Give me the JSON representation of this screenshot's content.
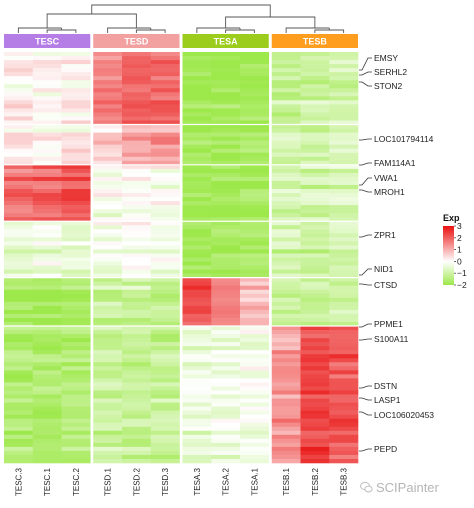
{
  "chart_data": {
    "type": "heatmap",
    "groups": [
      {
        "label": "TESC",
        "color": "#b57ee6",
        "columns": [
          "TESC.3",
          "TESC.1",
          "TESC.2"
        ]
      },
      {
        "label": "TESD",
        "color": "#f2a0a0",
        "columns": [
          "TESD.1",
          "TESD.2",
          "TESD.3"
        ]
      },
      {
        "label": "TESA",
        "color": "#9ccc1c",
        "columns": [
          "TESA.3",
          "TESA.2",
          "TESA.1"
        ]
      },
      {
        "label": "TESB",
        "color": "#ff9d1f",
        "columns": [
          "TESB.1",
          "TESB.2",
          "TESB.3"
        ]
      }
    ],
    "row_labels": [
      "EMSY",
      "SERHL2",
      "STON2",
      "LOC101794114",
      "FAM114A1",
      "VWA1",
      "MROH1",
      "ZPR1",
      "NID1",
      "CTSD",
      "PPME1",
      "S100A11",
      "DSTN",
      "LASP1",
      "LOC106020453",
      "PEPD"
    ],
    "blocks": [
      {
        "rows": 18,
        "values": [
          0.2,
          0.1,
          0.2,
          1.6,
          2.0,
          1.9,
          -1.9,
          -1.9,
          -1.9,
          -1.1,
          -1.0,
          -0.9
        ]
      },
      {
        "rows": 10,
        "values": [
          0.1,
          0.0,
          0.2,
          0.6,
          1.0,
          1.2,
          -1.9,
          -1.9,
          -1.9,
          -1.0,
          -1.1,
          -1.0
        ]
      },
      {
        "rows": 14,
        "values": [
          1.8,
          1.9,
          2.1,
          -0.2,
          -0.1,
          0.0,
          -1.9,
          -1.9,
          -1.9,
          -0.8,
          -0.9,
          -0.8
        ]
      },
      {
        "rows": 14,
        "values": [
          -0.5,
          -0.4,
          -0.6,
          -0.3,
          -0.2,
          -0.4,
          -1.9,
          -1.9,
          -1.9,
          -1.0,
          -1.1,
          -1.0
        ]
      },
      {
        "rows": 12,
        "values": [
          -1.8,
          -1.8,
          -1.7,
          -1.1,
          -1.0,
          -1.2,
          2.2,
          1.5,
          0.9,
          -1.0,
          -1.0,
          -0.9
        ]
      },
      {
        "rows": 34,
        "values": [
          -1.6,
          -1.6,
          -1.5,
          -1.1,
          -1.2,
          -1.1,
          -0.4,
          -0.3,
          -0.2,
          1.3,
          2.3,
          2.1
        ]
      }
    ],
    "group_separators_after_row": [
      18,
      28,
      42,
      56,
      68
    ],
    "legend": {
      "title": "Exp",
      "ticks": [
        3,
        2,
        1,
        0,
        -1,
        -2
      ],
      "range": [
        -2,
        3
      ],
      "colors": {
        "low": "#9de84a",
        "mid": "#ffffff",
        "high": "#e8100f"
      }
    },
    "dendrogram": "((TESC,TESD),(TESA,TESB))"
  },
  "watermark": "SCIPainter"
}
